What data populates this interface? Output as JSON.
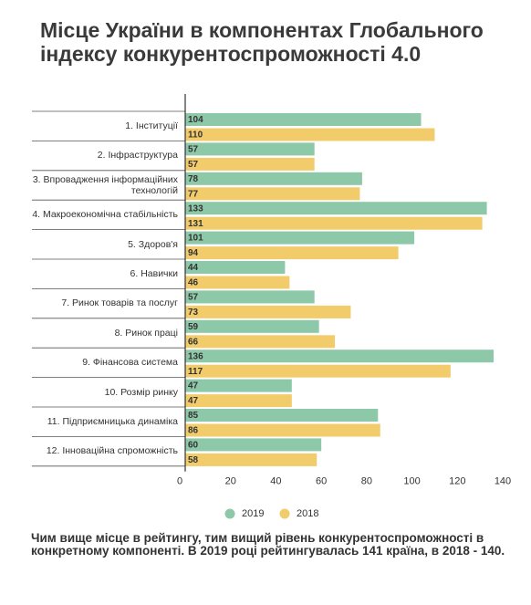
{
  "chart_data": {
    "type": "bar",
    "orientation": "horizontal",
    "title": "Місце України в компонентах Глобального індексу конкурентоспроможності 4.0",
    "categories": [
      "1. Інституції",
      "2. Інфраструктура",
      "3. Впровадження інформаційних технологій",
      "4. Макроекономічна стабільність",
      "5. Здоров'я",
      "6. Навички",
      "7. Ринок товарів та послуг",
      "8. Ринок праці",
      "9. Фінансова система",
      "10. Розмір ринку",
      "11. Підприємницька динаміка",
      "12. Інноваційна спроможність"
    ],
    "series": [
      {
        "name": "2019",
        "color": "#8dc8a8",
        "values": [
          104,
          57,
          78,
          133,
          101,
          44,
          57,
          59,
          136,
          47,
          85,
          60
        ]
      },
      {
        "name": "2018",
        "color": "#f2cc6b",
        "values": [
          110,
          57,
          77,
          131,
          94,
          46,
          73,
          66,
          117,
          47,
          86,
          58
        ]
      }
    ],
    "xlim": [
      0,
      140
    ],
    "xticks": [
      0,
      20,
      40,
      60,
      80,
      100,
      120,
      140
    ],
    "grid": false,
    "legend": "bottom",
    "note": "Чим вище місце в рейтингу, тим вищий рівень конкурентоспроможності в конкретному компоненті. В 2019 році рейтингувалась 141 країна, в 2018 - 140."
  }
}
